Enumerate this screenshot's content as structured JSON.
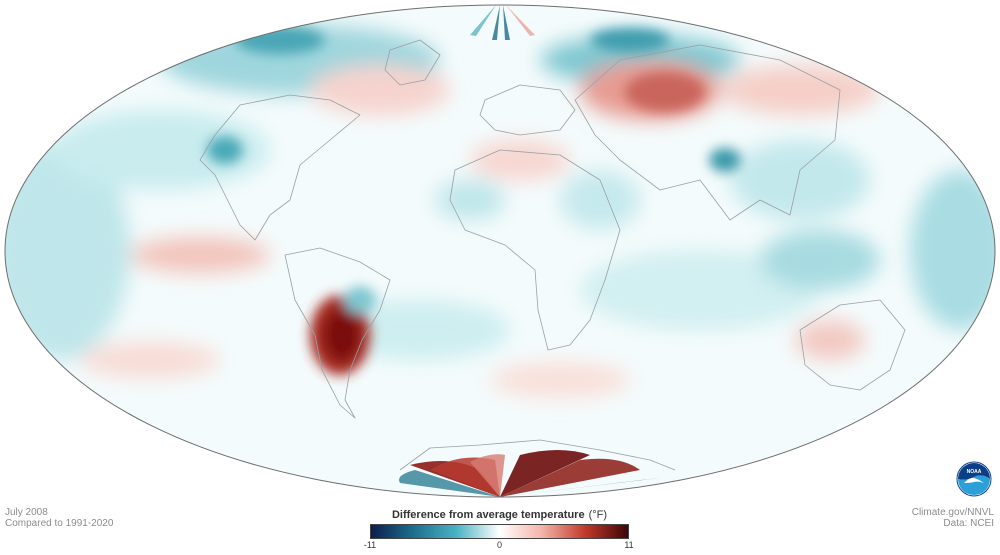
{
  "map": {
    "projection": "Robinson-style world map",
    "variable": "surface temperature anomaly",
    "regions": [
      {
        "name": "greenland-west-arctic",
        "anomaly": "cooler"
      },
      {
        "name": "north-atlantic-europe",
        "anomaly": "warmer"
      },
      {
        "name": "siberia",
        "anomaly": "warmer"
      },
      {
        "name": "central-asia",
        "anomaly": "cooler"
      },
      {
        "name": "southern-south-america",
        "anomaly": "much warmer"
      },
      {
        "name": "southern-africa",
        "anomaly": "near average"
      },
      {
        "name": "australia",
        "anomaly": "mixed"
      },
      {
        "name": "antarctica",
        "anomaly": "much warmer with cooler edges"
      }
    ]
  },
  "info": {
    "date": "July 2008",
    "comparison": "Compared to 1991-2020"
  },
  "credits": {
    "site": "Climate.gov/NNVL",
    "data_source": "Data: NCEI"
  },
  "legend": {
    "title": "Difference from average temperature",
    "unit": "(°F)",
    "min_label": "-11",
    "mid_label": "0",
    "max_label": "11",
    "colors": [
      "#0b1e4b",
      "#1d6f8f",
      "#4ab3c4",
      "#ffffff",
      "#f2b3a8",
      "#c0392b",
      "#3d0606"
    ]
  },
  "logo": {
    "text": "NOAA",
    "icon": "noaa-logo-icon",
    "colors": [
      "#0a3f87",
      "#2a9fd8"
    ]
  }
}
